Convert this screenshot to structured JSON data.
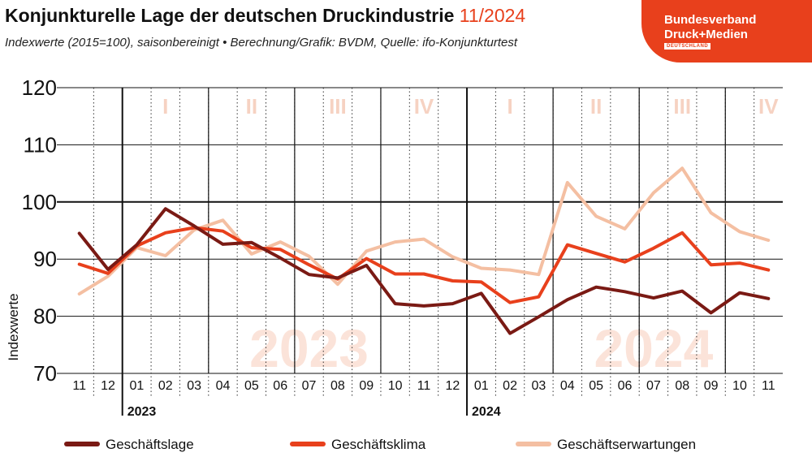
{
  "header": {
    "title": "Konjunkturelle Lage der deutschen Druckindustrie",
    "title_highlight": "11/2024",
    "subtitle": "Indexwerte (2015=100), saisonbereinigt • Berechnung/Grafik: BVDM, Quelle: ifo-Konjunkturtest"
  },
  "logo": {
    "line1": "Bundesverband",
    "line2": "Druck+Medien",
    "line3": "DEUTSCHLAND"
  },
  "colors": {
    "accent": "#e8401c",
    "lage": "#7a1a14",
    "klima": "#e8401c",
    "erwartungen": "#f4bfa2",
    "quarter_text": "#f6d2c2",
    "year_watermark": "#fbe3d9"
  },
  "chart_data": {
    "type": "line",
    "ylabel": "Indexwerte",
    "ylim": [
      70,
      120
    ],
    "yticks": [
      70,
      80,
      90,
      100,
      110,
      120
    ],
    "reference_line": 100,
    "categories": [
      "11",
      "12",
      "01",
      "02",
      "03",
      "04",
      "05",
      "06",
      "07",
      "08",
      "09",
      "10",
      "11",
      "12",
      "01",
      "02",
      "03",
      "04",
      "05",
      "06",
      "07",
      "08",
      "09",
      "10",
      "11"
    ],
    "years": [
      {
        "label": "2023",
        "start_index": 2
      },
      {
        "label": "2024",
        "start_index": 14
      }
    ],
    "watermarks": [
      {
        "label": "2023",
        "center_index": 8
      },
      {
        "label": "2024",
        "center_index": 20
      }
    ],
    "quarters": [
      {
        "label": "I",
        "center_index": 3
      },
      {
        "label": "II",
        "center_index": 6
      },
      {
        "label": "III",
        "center_index": 9
      },
      {
        "label": "IV",
        "center_index": 12
      },
      {
        "label": "I",
        "center_index": 15
      },
      {
        "label": "II",
        "center_index": 18
      },
      {
        "label": "III",
        "center_index": 21
      },
      {
        "label": "IV",
        "center_index": 24
      }
    ],
    "series": [
      {
        "name": "Geschäftslage",
        "color": "#7a1a14",
        "values": [
          94.5,
          88.2,
          92.5,
          98.8,
          95.8,
          92.6,
          92.9,
          90.2,
          87.3,
          86.7,
          88.9,
          82.2,
          81.8,
          82.2,
          84.0,
          77.0,
          79.9,
          82.9,
          85.1,
          84.3,
          83.2,
          84.4,
          80.6,
          84.1,
          83.1
        ]
      },
      {
        "name": "Geschäftsklima",
        "color": "#e8401c",
        "values": [
          89.1,
          87.5,
          92.3,
          94.6,
          95.5,
          94.9,
          92.0,
          91.7,
          89.0,
          86.5,
          90.1,
          87.4,
          87.4,
          86.2,
          86.0,
          82.4,
          83.4,
          92.5,
          91.0,
          89.5,
          91.9,
          94.6,
          89.0,
          89.3,
          88.1
        ]
      },
      {
        "name": "Geschäftserwartungen",
        "color": "#f4bfa2",
        "values": [
          83.9,
          87.0,
          92.0,
          90.6,
          95.1,
          96.8,
          90.9,
          93.0,
          90.5,
          85.6,
          91.4,
          93.0,
          93.5,
          90.4,
          88.4,
          88.1,
          87.3,
          103.4,
          97.5,
          95.3,
          101.6,
          105.9,
          98.1,
          94.8,
          93.3
        ]
      }
    ],
    "legend": {
      "placement": "bottom"
    }
  }
}
